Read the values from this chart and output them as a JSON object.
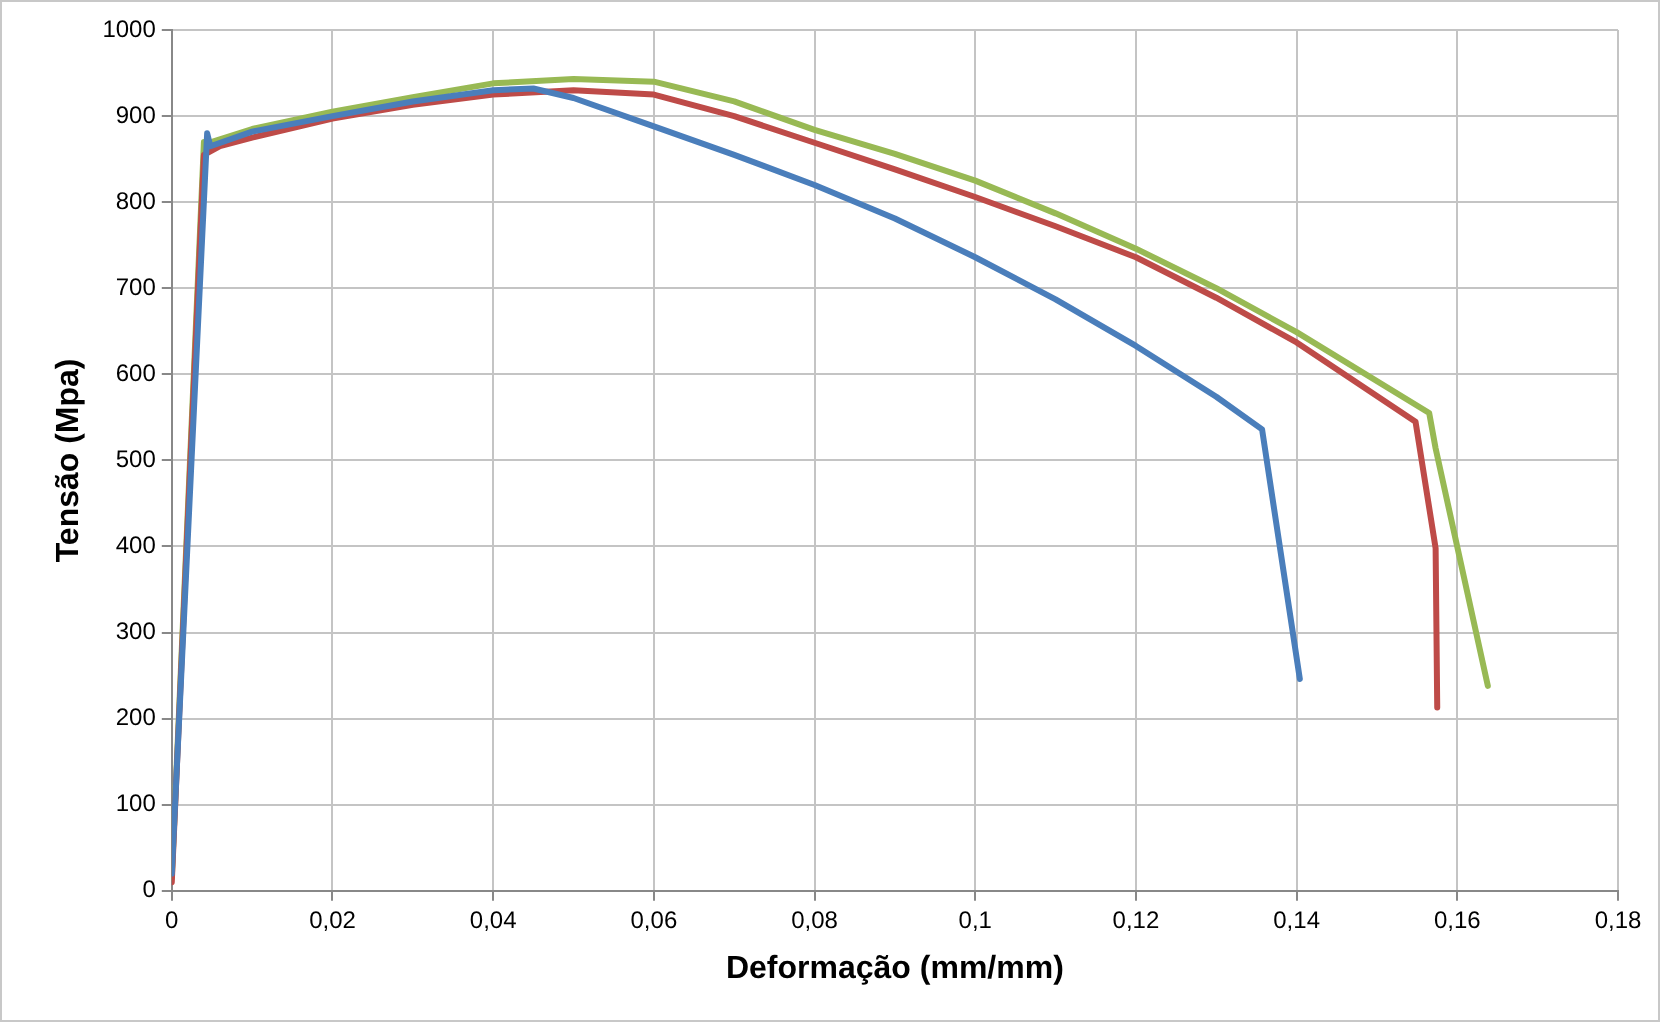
{
  "chart_data": {
    "type": "line",
    "xlabel": "Deformação (mm/mm)",
    "ylabel": "Tensão (Mpa)",
    "xlim": [
      0,
      0.18
    ],
    "ylim": [
      0,
      1000
    ],
    "xticks": [
      0,
      {
        "value": 0.02,
        "label": "0,02"
      },
      {
        "value": 0.04,
        "label": "0,04"
      },
      {
        "value": 0.06,
        "label": "0,06"
      },
      {
        "value": 0.08,
        "label": "0,08"
      },
      {
        "value": 0.1,
        "label": "0,1"
      },
      {
        "value": 0.12,
        "label": "0,12"
      },
      {
        "value": 0.14,
        "label": "0,14"
      },
      {
        "value": 0.16,
        "label": "0,16"
      },
      {
        "value": 0.18,
        "label": "0,18"
      }
    ],
    "yticks": [
      0,
      100,
      200,
      300,
      400,
      500,
      600,
      700,
      800,
      900,
      1000
    ],
    "grid": true,
    "legend": false,
    "marker": "none",
    "line_style": "solid",
    "series": [
      {
        "color": "#4a7ebb",
        "x": [
          0,
          0.0044,
          0.0048,
          0.01,
          0.02,
          0.03,
          0.04,
          0.045,
          0.05,
          0.06,
          0.07,
          0.08,
          0.09,
          0.1,
          0.11,
          0.12,
          0.13,
          0.1357,
          0.1404
        ],
        "values": [
          20,
          880,
          865,
          882,
          900,
          917,
          930,
          932,
          921,
          888,
          855,
          820,
          781,
          736,
          687,
          633,
          574,
          536,
          246
        ]
      },
      {
        "color": "#be4b48",
        "x": [
          0,
          0.004,
          0.006,
          0.01,
          0.02,
          0.03,
          0.04,
          0.05,
          0.06,
          0.07,
          0.08,
          0.09,
          0.1,
          0.11,
          0.12,
          0.13,
          0.14,
          0.1548,
          0.1573,
          0.1575
        ],
        "values": [
          10,
          855,
          865,
          875,
          897,
          913,
          925,
          930,
          925,
          900,
          869,
          838,
          806,
          772,
          736,
          689,
          637,
          545,
          398,
          213
        ]
      },
      {
        "color": "#98b954",
        "x": [
          0,
          0.004,
          0.005,
          0.01,
          0.02,
          0.03,
          0.04,
          0.05,
          0.06,
          0.07,
          0.08,
          0.09,
          0.1,
          0.11,
          0.12,
          0.13,
          0.14,
          0.1565,
          0.1573,
          0.1638
        ],
        "values": [
          15,
          870,
          870,
          885,
          905,
          922,
          938,
          943,
          940,
          917,
          884,
          856,
          825,
          787,
          746,
          700,
          649,
          555,
          514,
          238
        ]
      }
    ]
  }
}
